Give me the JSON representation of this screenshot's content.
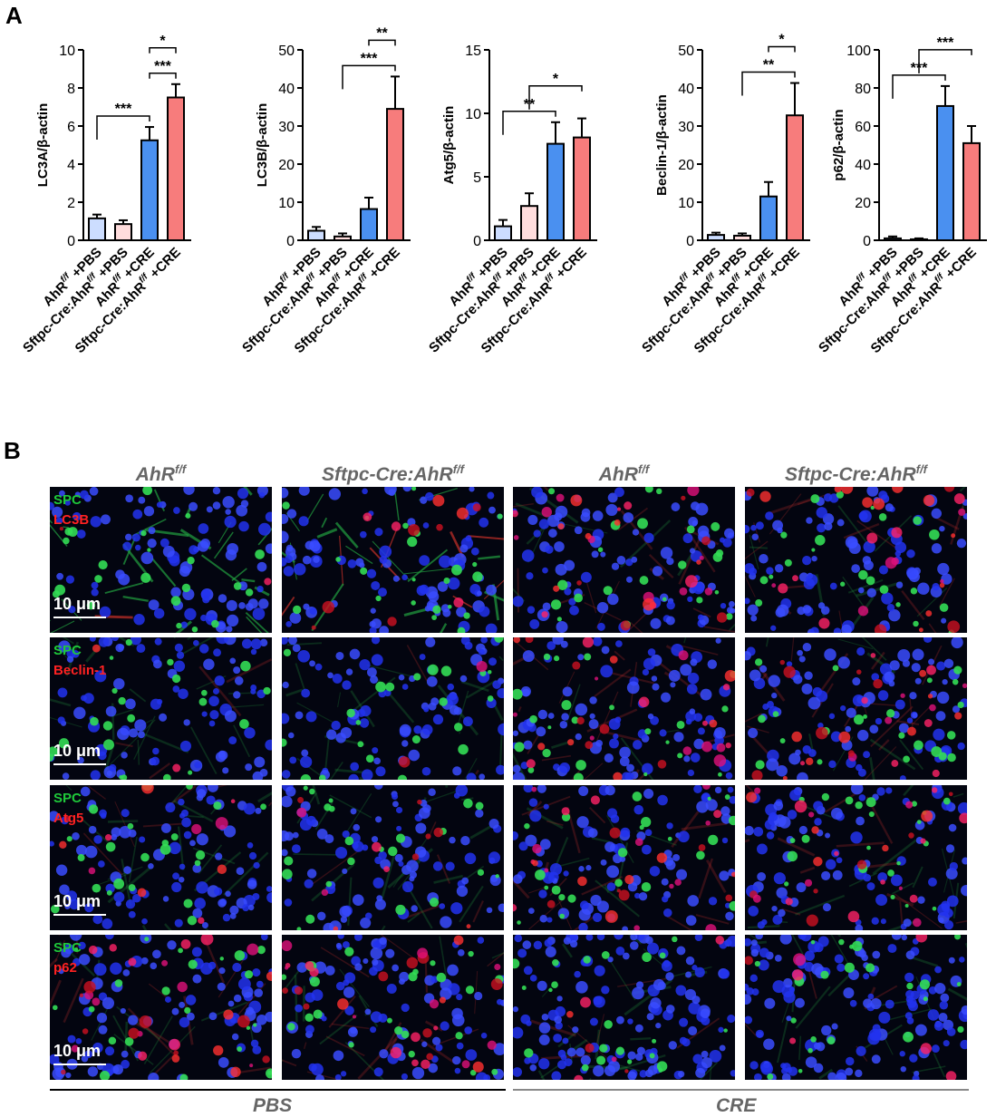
{
  "panel_a_label": "A",
  "panel_b_label": "B",
  "colors": {
    "bar_fills": [
      "#ccddff",
      "#ffdddd",
      "#4a90f0",
      "#f77c7c"
    ],
    "scale_text": "#ffffff",
    "spc_label": "#1fc93a",
    "marker_label": "#ff2222",
    "pbs_line": "#000000",
    "cre_line": "#888888",
    "header_text": "#666666"
  },
  "chart_data": [
    {
      "type": "bar",
      "categories": [
        "AhR f/f +PBS",
        "Sftpc-Cre:AhR f/f +PBS",
        "AhR f/f +CRE",
        "Sftpc-Cre:AhR f/f +CRE"
      ],
      "values": [
        1.15,
        0.85,
        5.25,
        7.5
      ],
      "errors": [
        0.2,
        0.2,
        0.7,
        0.7
      ],
      "ylabel": "LC3A/β-actin",
      "ylim": [
        0,
        10
      ],
      "yticks": [
        0,
        2,
        4,
        6,
        8,
        10
      ],
      "significance": [
        {
          "from": 0,
          "to": 2,
          "label": "***"
        },
        {
          "from": 2,
          "to": 3,
          "label": "***"
        },
        {
          "from": 2,
          "to": 3,
          "label": "*"
        }
      ]
    },
    {
      "type": "bar",
      "categories": [
        "AhR f/f +PBS",
        "Sftpc-Cre:AhR f/f +PBS",
        "AhR f/f +CRE",
        "Sftpc-Cre:AhR f/f +CRE"
      ],
      "values": [
        2.5,
        1.0,
        8.2,
        34.5
      ],
      "errors": [
        1.0,
        0.8,
        3.0,
        8.5
      ],
      "ylabel": "LC3B/β-actin",
      "ylim": [
        0,
        50
      ],
      "yticks": [
        0,
        10,
        20,
        30,
        40,
        50
      ],
      "significance": [
        {
          "from": 1,
          "to": 3,
          "label": "***"
        },
        {
          "from": 2,
          "to": 3,
          "label": "**"
        }
      ]
    },
    {
      "type": "bar",
      "categories": [
        "AhR f/f +PBS",
        "Sftpc-Cre:AhR f/f +PBS",
        "AhR f/f +CRE",
        "Sftpc-Cre:AhR f/f +CRE"
      ],
      "values": [
        1.1,
        2.7,
        7.6,
        8.1
      ],
      "errors": [
        0.5,
        1.0,
        1.7,
        1.5
      ],
      "ylabel": "Atg5/β-actin",
      "ylim": [
        0,
        15
      ],
      "yticks": [
        0,
        5,
        10,
        15
      ],
      "significance": [
        {
          "from": 0,
          "to": 2,
          "label": "**"
        },
        {
          "from": 1,
          "to": 3,
          "label": "*"
        }
      ]
    },
    {
      "type": "bar",
      "categories": [
        "AhR f/f +PBS",
        "Sftpc-Cre:AhR f/f +PBS",
        "AhR f/f +CRE",
        "Sftpc-Cre:AhR f/f +CRE"
      ],
      "values": [
        1.4,
        1.2,
        11.5,
        32.8
      ],
      "errors": [
        0.6,
        0.6,
        3.8,
        8.5
      ],
      "ylabel": "Beclin-1/β-actin",
      "ylim": [
        0,
        50
      ],
      "yticks": [
        0,
        10,
        20,
        30,
        40,
        50
      ],
      "significance": [
        {
          "from": 1,
          "to": 3,
          "label": "**"
        },
        {
          "from": 2,
          "to": 3,
          "label": "*"
        }
      ]
    },
    {
      "type": "bar",
      "categories": [
        "AhR f/f +PBS",
        "Sftpc-Cre:AhR f/f +PBS",
        "AhR f/f +CRE",
        "Sftpc-Cre:AhR f/f +CRE"
      ],
      "values": [
        1.0,
        0.5,
        70.5,
        51.0
      ],
      "errors": [
        1.0,
        0.5,
        10.5,
        9.0
      ],
      "ylabel": "p62/β-actin",
      "ylim": [
        0,
        100
      ],
      "yticks": [
        0,
        20,
        40,
        60,
        80,
        100
      ],
      "significance": [
        {
          "from": 0,
          "to": 2,
          "label": "***"
        },
        {
          "from": 1,
          "to": 3,
          "label": "***"
        }
      ]
    }
  ],
  "category_labels": [
    {
      "prefix": "AhR",
      "sup": "f/f",
      "suffix": " +PBS"
    },
    {
      "prefix": "Sftpc-Cre:AhR",
      "sup": "f/f",
      "suffix": " +PBS"
    },
    {
      "prefix": "AhR",
      "sup": "f/f",
      "suffix": " +CRE"
    },
    {
      "prefix": "Sftpc-Cre:AhR",
      "sup": "f/f",
      "suffix": " +CRE"
    }
  ],
  "columns": [
    {
      "name": "AhR",
      "sup": "f/f"
    },
    {
      "name": "Sftpc-Cre:AhR",
      "sup": "f/f"
    },
    {
      "name": "AhR",
      "sup": "f/f"
    },
    {
      "name": "Sftpc-Cre:AhR",
      "sup": "f/f"
    }
  ],
  "rows": [
    {
      "green_label": "SPC",
      "red_label": "LC3B",
      "scale_label": "10 μm"
    },
    {
      "green_label": "SPC",
      "red_label": "Beclin-1",
      "scale_label": "10 μm"
    },
    {
      "green_label": "SPC",
      "red_label": "Atg5",
      "scale_label": "10 μm"
    },
    {
      "green_label": "SPC",
      "red_label": "p62",
      "scale_label": "10 μm"
    }
  ],
  "groups": [
    {
      "label": "PBS"
    },
    {
      "label": "CRE"
    }
  ]
}
